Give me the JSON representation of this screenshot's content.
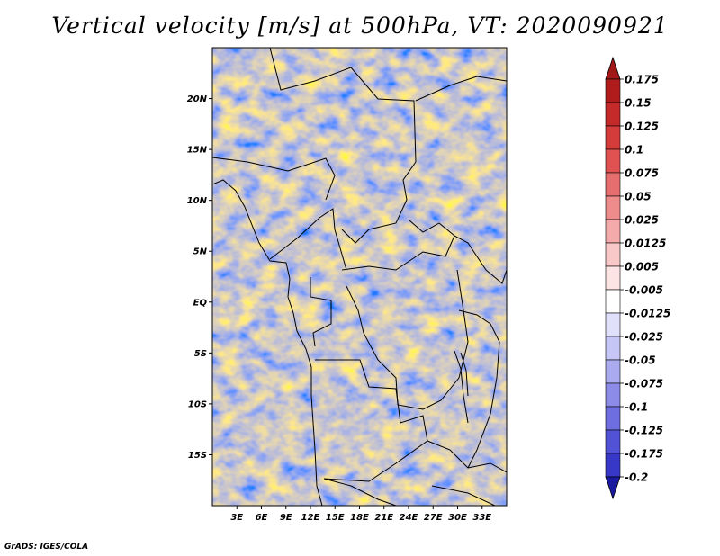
{
  "title": "Vertical velocity [m/s] at 500hPa, VT: 2020090921",
  "credit": "GrADS: IGES/COLA",
  "map": {
    "lon_range": [
      0,
      36
    ],
    "lat_range": [
      -20,
      25
    ],
    "lat_labels": [
      {
        "value": 20,
        "text": "20N"
      },
      {
        "value": 15,
        "text": "15N"
      },
      {
        "value": 10,
        "text": "10N"
      },
      {
        "value": 5,
        "text": "5N"
      },
      {
        "value": 0,
        "text": "EQ"
      },
      {
        "value": -5,
        "text": "5S"
      },
      {
        "value": -10,
        "text": "10S"
      },
      {
        "value": -15,
        "text": "15S"
      }
    ],
    "lon_labels": [
      {
        "value": 3,
        "text": "3E"
      },
      {
        "value": 6,
        "text": "6E"
      },
      {
        "value": 9,
        "text": "9E"
      },
      {
        "value": 12,
        "text": "12E"
      },
      {
        "value": 15,
        "text": "15E"
      },
      {
        "value": 18,
        "text": "18E"
      },
      {
        "value": 21,
        "text": "21E"
      },
      {
        "value": 24,
        "text": "24E"
      },
      {
        "value": 27,
        "text": "27E"
      },
      {
        "value": 30,
        "text": "30E"
      },
      {
        "value": 33,
        "text": "33E"
      }
    ]
  },
  "colorbar": {
    "levels": [
      {
        "label": "0.175",
        "color": "#b01c1c"
      },
      {
        "label": "0.15",
        "color": "#c42a2a"
      },
      {
        "label": "0.125",
        "color": "#d43b3b"
      },
      {
        "label": "0.1",
        "color": "#e05252"
      },
      {
        "label": "0.075",
        "color": "#e66e6e"
      },
      {
        "label": "0.05",
        "color": "#ee8c8c"
      },
      {
        "label": "0.025",
        "color": "#f4aaaa"
      },
      {
        "label": "0.0125",
        "color": "#f8c8c8"
      },
      {
        "label": "0.005",
        "color": "#fce4e4"
      },
      {
        "label": "-0.005",
        "color": "#ffffff"
      },
      {
        "label": "-0.0125",
        "color": "#e0e0fa"
      },
      {
        "label": "-0.025",
        "color": "#c6c6f6"
      },
      {
        "label": "-0.05",
        "color": "#aaaaf0"
      },
      {
        "label": "-0.075",
        "color": "#8c8ce8"
      },
      {
        "label": "-0.1",
        "color": "#6e6ee0"
      },
      {
        "label": "-0.125",
        "color": "#5252d6"
      },
      {
        "label": "-0.175",
        "color": "#3838c8"
      },
      {
        "label": "-0.2",
        "color": "#2020b0"
      }
    ],
    "top_color": "#a01818",
    "bottom_color": "#1a1aa0"
  }
}
